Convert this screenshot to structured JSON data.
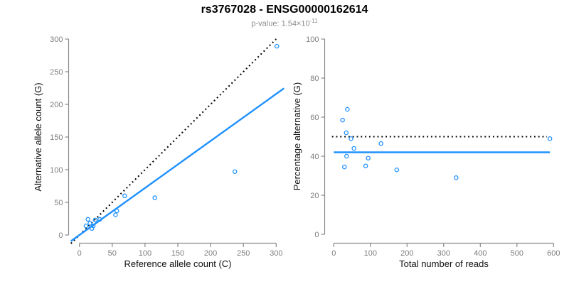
{
  "header": {
    "title": "rs3767028 - ENSG00000162614",
    "subtitle_prefix": "p-value: 1.54×10",
    "subtitle_exponent": "-11"
  },
  "colors": {
    "accent": "#1E90FF",
    "axis": "#888888",
    "tick_label": "#7d7d7d",
    "axis_title": "#111111",
    "title": "#000000",
    "subtitle": "#8c8c8c",
    "line_black": "#000000"
  },
  "chart_data": [
    {
      "type": "scatter",
      "name": "allele-count-scatter",
      "xlabel": "Reference allele count (C)",
      "ylabel": "Alternative allele count (G)",
      "xlim": [
        0,
        300
      ],
      "ylim": [
        0,
        300
      ],
      "xticks": [
        0,
        50,
        100,
        150,
        200,
        250,
        300
      ],
      "yticks": [
        0,
        50,
        100,
        150,
        200,
        250,
        300
      ],
      "grid": false,
      "legend": "none",
      "points": [
        [
          10,
          14
        ],
        [
          13,
          24
        ],
        [
          16,
          18
        ],
        [
          19,
          10
        ],
        [
          21,
          14
        ],
        [
          24,
          23
        ],
        [
          31,
          24
        ],
        [
          55,
          31
        ],
        [
          57,
          37
        ],
        [
          69,
          60
        ],
        [
          115,
          57
        ],
        [
          237,
          97
        ],
        [
          301,
          289
        ]
      ],
      "lines": [
        {
          "name": "identity-line",
          "slope": 1,
          "intercept": 0,
          "style": "dotted",
          "color": "#000000",
          "x_range": [
            -13,
            300
          ]
        },
        {
          "name": "regression-line",
          "slope": 0.72,
          "intercept": 0,
          "style": "solid",
          "color": "#1E90FF",
          "x_range": [
            -13,
            312
          ]
        }
      ]
    },
    {
      "type": "scatter",
      "name": "percentage-vs-reads-scatter",
      "xlabel": "Total number of reads",
      "ylabel": "Percentage alternative (G)",
      "xlim": [
        0,
        600
      ],
      "ylim": [
        0,
        100
      ],
      "xticks": [
        0,
        100,
        200,
        300,
        400,
        500,
        600
      ],
      "yticks": [
        0,
        20,
        40,
        60,
        80,
        100
      ],
      "grid": false,
      "legend": "none",
      "points": [
        [
          24,
          58.5
        ],
        [
          29,
          34.5
        ],
        [
          34,
          52
        ],
        [
          35,
          40
        ],
        [
          37,
          64
        ],
        [
          47,
          49
        ],
        [
          55,
          44
        ],
        [
          87,
          35
        ],
        [
          94,
          39
        ],
        [
          129,
          46.5
        ],
        [
          172,
          33
        ],
        [
          334,
          29
        ],
        [
          590,
          49
        ]
      ],
      "lines": [
        {
          "name": "fifty-percent-line",
          "slope": 0,
          "intercept": 50,
          "style": "dotted",
          "color": "#000000",
          "x_range": [
            -5,
            582
          ]
        },
        {
          "name": "mean-percentage-line",
          "slope": 0,
          "intercept": 42,
          "style": "solid",
          "color": "#1E90FF",
          "x_range": [
            0,
            590
          ]
        }
      ]
    }
  ]
}
